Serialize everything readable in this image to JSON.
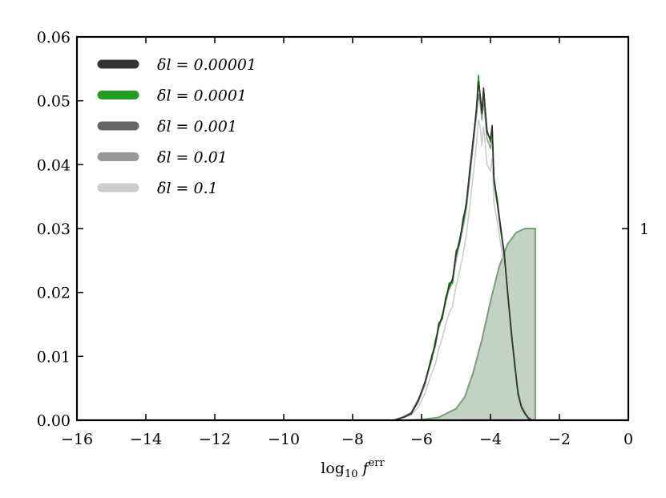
{
  "chart_data": {
    "type": "line",
    "xlabel": "log₁₀ f^err",
    "xlabel_parts": {
      "pre": "log",
      "sub": "10",
      "var": " f",
      "sup": "err"
    },
    "xlim": [
      -16,
      0
    ],
    "ylim": [
      0,
      0.06
    ],
    "x_ticks": [
      -16,
      -14,
      -12,
      -10,
      -8,
      -6,
      -4,
      -2,
      0
    ],
    "x_tick_labels": [
      "−16",
      "−14",
      "−12",
      "−10",
      "−8",
      "−6",
      "−4",
      "−2",
      "0"
    ],
    "y_ticks": [
      0,
      0.01,
      0.02,
      0.03,
      0.04,
      0.05,
      0.06
    ],
    "y_tick_labels": [
      "0.00",
      "0.01",
      "0.02",
      "0.03",
      "0.04",
      "0.05",
      "0.06"
    ],
    "right_axis": {
      "ticks": [
        1
      ],
      "tick_labels": [
        "1"
      ],
      "ylim": [
        0,
        2
      ]
    },
    "legend_position": "top-left",
    "grid": false,
    "series": [
      {
        "name": "δl = 0.00001",
        "color": "#333333",
        "x": [
          -6.8,
          -6.5,
          -6.3,
          -6.1,
          -5.9,
          -5.7,
          -5.6,
          -5.5,
          -5.4,
          -5.3,
          -5.2,
          -5.1,
          -5.0,
          -4.9,
          -4.8,
          -4.7,
          -4.6,
          -4.5,
          -4.4,
          -4.35,
          -4.3,
          -4.25,
          -4.2,
          -4.1,
          -4.0,
          -3.95,
          -3.9,
          -3.8,
          -3.7,
          -3.6,
          -3.5,
          -3.4,
          -3.3,
          -3.2,
          -3.1,
          -3.0,
          -2.9,
          -2.8
        ],
        "y": [
          0.0,
          0.0005,
          0.001,
          0.003,
          0.006,
          0.01,
          0.012,
          0.015,
          0.016,
          0.019,
          0.021,
          0.022,
          0.026,
          0.028,
          0.031,
          0.034,
          0.039,
          0.044,
          0.049,
          0.053,
          0.051,
          0.048,
          0.052,
          0.045,
          0.044,
          0.046,
          0.038,
          0.034,
          0.03,
          0.026,
          0.02,
          0.014,
          0.009,
          0.004,
          0.002,
          0.001,
          0.0003,
          0.0
        ]
      },
      {
        "name": "δl = 0.0001",
        "color": "#1f9e1f",
        "x": [
          -6.8,
          -6.5,
          -6.3,
          -6.1,
          -5.9,
          -5.7,
          -5.6,
          -5.5,
          -5.4,
          -5.3,
          -5.2,
          -5.1,
          -5.0,
          -4.9,
          -4.8,
          -4.7,
          -4.6,
          -4.5,
          -4.4,
          -4.35,
          -4.3,
          -4.25,
          -4.2,
          -4.1,
          -4.0,
          -3.95,
          -3.9,
          -3.8,
          -3.7,
          -3.6,
          -3.5,
          -3.4,
          -3.3,
          -3.2,
          -3.1,
          -3.0,
          -2.9,
          -2.8
        ],
        "y": [
          0.0,
          0.0005,
          0.001,
          0.003,
          0.006,
          0.0095,
          0.0125,
          0.0145,
          0.0165,
          0.0185,
          0.0215,
          0.0215,
          0.0265,
          0.0275,
          0.0315,
          0.0335,
          0.0395,
          0.0435,
          0.0495,
          0.054,
          0.0505,
          0.0485,
          0.0515,
          0.0455,
          0.0435,
          0.046,
          0.0375,
          0.0345,
          0.0295,
          0.0265,
          0.0195,
          0.0145,
          0.0085,
          0.0045,
          0.002,
          0.001,
          0.0003,
          0.0
        ]
      },
      {
        "name": "δl = 0.001",
        "color": "#666666",
        "x": [
          -6.8,
          -6.5,
          -6.3,
          -6.1,
          -5.9,
          -5.7,
          -5.6,
          -5.5,
          -5.4,
          -5.3,
          -5.2,
          -5.1,
          -5.0,
          -4.9,
          -4.8,
          -4.7,
          -4.6,
          -4.5,
          -4.4,
          -4.35,
          -4.3,
          -4.25,
          -4.2,
          -4.1,
          -4.0,
          -3.95,
          -3.9,
          -3.8,
          -3.7,
          -3.6,
          -3.5,
          -3.4,
          -3.3,
          -3.2,
          -3.1,
          -3.0,
          -2.9,
          -2.8
        ],
        "y": [
          0.0,
          0.0006,
          0.0012,
          0.0032,
          0.0058,
          0.0102,
          0.0118,
          0.0152,
          0.0158,
          0.0192,
          0.0208,
          0.0222,
          0.0258,
          0.0282,
          0.0308,
          0.0342,
          0.0388,
          0.0442,
          0.0488,
          0.0532,
          0.0508,
          0.0482,
          0.0518,
          0.0452,
          0.0438,
          0.0462,
          0.0378,
          0.0342,
          0.0302,
          0.0258,
          0.0202,
          0.0138,
          0.0092,
          0.0042,
          0.0022,
          0.0012,
          0.0004,
          0.0
        ]
      },
      {
        "name": "δl = 0.01",
        "color": "#999999",
        "x": [
          -6.8,
          -6.5,
          -6.3,
          -6.1,
          -5.9,
          -5.7,
          -5.6,
          -5.5,
          -5.4,
          -5.3,
          -5.2,
          -5.1,
          -5.0,
          -4.9,
          -4.8,
          -4.7,
          -4.6,
          -4.5,
          -4.4,
          -4.35,
          -4.3,
          -4.25,
          -4.2,
          -4.1,
          -4.0,
          -3.95,
          -3.9,
          -3.8,
          -3.7,
          -3.6,
          -3.5,
          -3.4,
          -3.3,
          -3.2,
          -3.1,
          -3.0,
          -2.9,
          -2.8
        ],
        "y": [
          0.0,
          0.0005,
          0.001,
          0.0028,
          0.0055,
          0.0098,
          0.0115,
          0.0145,
          0.016,
          0.0185,
          0.0205,
          0.0215,
          0.025,
          0.0275,
          0.03,
          0.033,
          0.038,
          0.043,
          0.048,
          0.051,
          0.0495,
          0.047,
          0.05,
          0.044,
          0.0425,
          0.0445,
          0.037,
          0.0335,
          0.0295,
          0.0255,
          0.0195,
          0.0135,
          0.0088,
          0.004,
          0.002,
          0.001,
          0.0003,
          0.0
        ]
      },
      {
        "name": "δl = 0.1",
        "color": "#cccccc",
        "x": [
          -6.8,
          -6.5,
          -6.3,
          -6.1,
          -5.9,
          -5.7,
          -5.6,
          -5.5,
          -5.4,
          -5.3,
          -5.2,
          -5.1,
          -5.0,
          -4.9,
          -4.8,
          -4.7,
          -4.6,
          -4.5,
          -4.4,
          -4.35,
          -4.3,
          -4.25,
          -4.2,
          -4.1,
          -4.0,
          -3.95,
          -3.9,
          -3.8,
          -3.7,
          -3.6,
          -3.5,
          -3.4,
          -3.3,
          -3.2,
          -3.1,
          -3.0,
          -2.9,
          -2.8
        ],
        "y": [
          0.0,
          0.0004,
          0.0008,
          0.002,
          0.0042,
          0.0075,
          0.0088,
          0.0112,
          0.0128,
          0.015,
          0.0168,
          0.0178,
          0.021,
          0.0232,
          0.0258,
          0.029,
          0.0335,
          0.0385,
          0.0435,
          0.047,
          0.046,
          0.043,
          0.046,
          0.04,
          0.039,
          0.041,
          0.034,
          0.031,
          0.0275,
          0.0238,
          0.0185,
          0.0128,
          0.0082,
          0.0038,
          0.0018,
          0.0008,
          0.0002,
          0.0
        ]
      }
    ],
    "cumulative_area": {
      "color": "#7a9e7a",
      "fill_opacity": 0.45,
      "axis": "right",
      "x": [
        -7.0,
        -6.5,
        -6.0,
        -5.5,
        -5.0,
        -4.75,
        -4.5,
        -4.25,
        -4.0,
        -3.75,
        -3.5,
        -3.25,
        -3.0,
        -2.8,
        -2.7
      ],
      "y": [
        0.0,
        0.0002,
        0.003,
        0.015,
        0.06,
        0.12,
        0.25,
        0.42,
        0.62,
        0.8,
        0.92,
        0.98,
        1.0,
        1.0,
        1.0
      ]
    }
  }
}
